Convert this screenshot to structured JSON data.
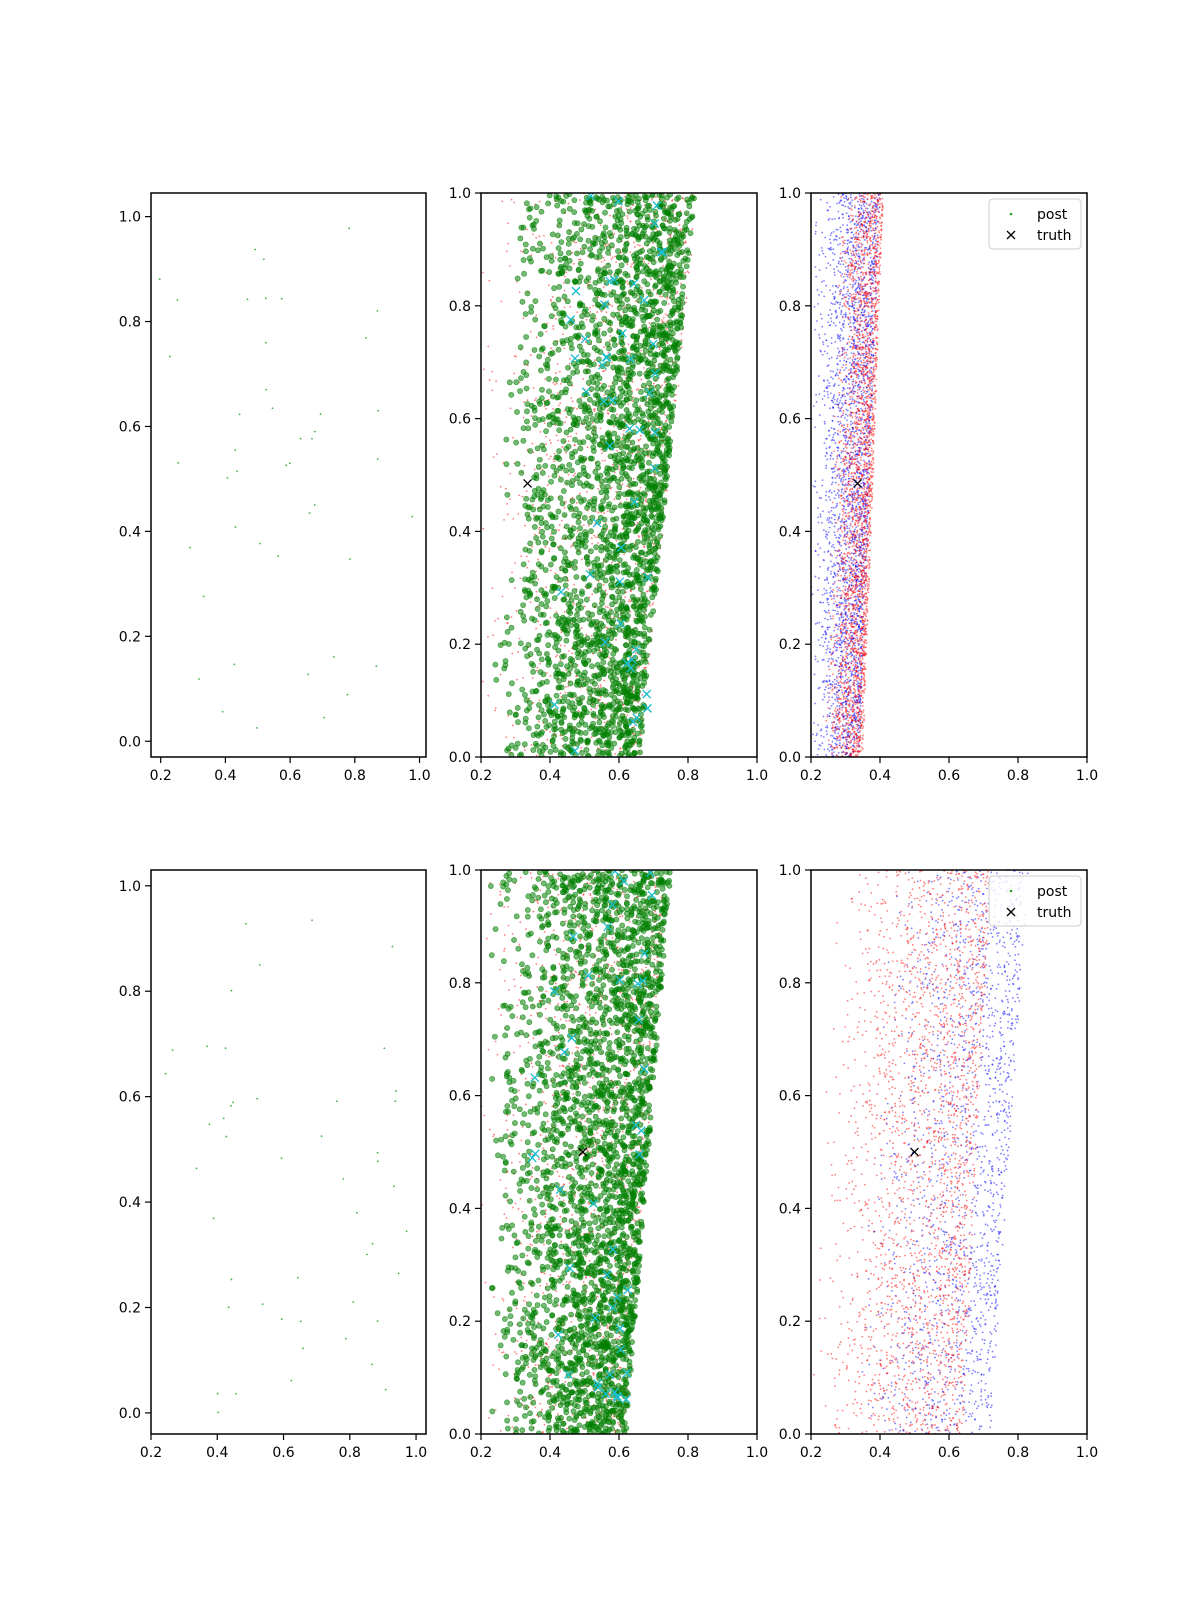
{
  "chart_data": [
    {
      "type": "scatter",
      "panel": "top-left",
      "xlim": [
        0.17,
        1.02
      ],
      "ylim": [
        -0.03,
        1.045
      ],
      "xticks": [
        "0.2",
        "0.4",
        "0.6",
        "0.8",
        "1.0"
      ],
      "yticks": [
        "0.0",
        "0.2",
        "0.4",
        "0.6",
        "0.8",
        "1.0"
      ],
      "series": [
        {
          "kind": "points",
          "color": "#2ca02c",
          "marker": "dot",
          "count": 45,
          "seed": 11,
          "x_range": [
            0.19,
            0.99
          ],
          "y_range": [
            0.0,
            1.0
          ]
        }
      ]
    },
    {
      "type": "scatter",
      "panel": "top-middle",
      "xlim": [
        0.2,
        1.0
      ],
      "ylim": [
        0.0,
        1.0
      ],
      "xticks": [
        "0.2",
        "0.4",
        "0.6",
        "0.8",
        "1.0"
      ],
      "yticks": [
        "0.0",
        "0.2",
        "0.4",
        "0.6",
        "0.8",
        "1.0"
      ],
      "series": [
        {
          "kind": "band",
          "color": "#ff0000",
          "marker": "small-dot",
          "count": 1500,
          "seed": 21,
          "left_at_y0": 0.2,
          "left_at_y1": 0.2,
          "right_at_y0": 0.66,
          "right_at_y1": 0.83
        },
        {
          "kind": "band",
          "color": "#008000",
          "marker": "circle",
          "count": 2600,
          "seed": 22,
          "left_at_y0": 0.22,
          "left_at_y1": 0.28,
          "right_at_y0": 0.66,
          "right_at_y1": 0.82
        },
        {
          "kind": "band",
          "color": "#17becf",
          "marker": "x",
          "count": 50,
          "seed": 23,
          "left_at_y0": 0.3,
          "left_at_y1": 0.48,
          "right_at_y0": 0.68,
          "right_at_y1": 0.74
        }
      ],
      "truth": {
        "x": 0.335,
        "y": 0.485
      }
    },
    {
      "type": "scatter",
      "panel": "top-right",
      "xlim": [
        0.2,
        1.0
      ],
      "ylim": [
        0.0,
        1.0
      ],
      "xticks": [
        "0.2",
        "0.4",
        "0.6",
        "0.8",
        "1.0"
      ],
      "yticks": [
        "0.0",
        "0.2",
        "0.4",
        "0.6",
        "0.8",
        "1.0"
      ],
      "series": [
        {
          "kind": "band",
          "color": "#0000ff",
          "marker": "small-dot",
          "count": 2600,
          "seed": 31,
          "left_at_y0": 0.2,
          "left_at_y1": 0.2,
          "right_at_y0": 0.34,
          "right_at_y1": 0.4
        },
        {
          "kind": "band",
          "color": "#ff0000",
          "marker": "small-dot",
          "count": 2600,
          "seed": 32,
          "left_at_y0": 0.24,
          "left_at_y1": 0.28,
          "right_at_y0": 0.35,
          "right_at_y1": 0.41
        }
      ],
      "truth": {
        "x": 0.335,
        "y": 0.485
      },
      "legend": {
        "placement": "top-right",
        "entries": [
          {
            "label": "post",
            "marker": "dot"
          },
          {
            "label": "truth",
            "marker": "x"
          }
        ]
      }
    },
    {
      "type": "scatter",
      "panel": "bottom-left",
      "xlim": [
        0.2,
        1.03
      ],
      "ylim": [
        -0.04,
        1.03
      ],
      "xticks": [
        "0.2",
        "0.4",
        "0.6",
        "0.8",
        "1.0"
      ],
      "yticks": [
        "0.0",
        "0.2",
        "0.4",
        "0.6",
        "0.8",
        "1.0"
      ],
      "series": [
        {
          "kind": "points",
          "color": "#2ca02c",
          "marker": "dot",
          "count": 48,
          "seed": 41,
          "x_range": [
            0.22,
            1.0
          ],
          "y_range": [
            0.0,
            0.97
          ]
        }
      ]
    },
    {
      "type": "scatter",
      "panel": "bottom-middle",
      "xlim": [
        0.2,
        1.0
      ],
      "ylim": [
        0.0,
        1.0
      ],
      "xticks": [
        "0.2",
        "0.4",
        "0.6",
        "0.8",
        "1.0"
      ],
      "yticks": [
        "0.0",
        "0.2",
        "0.4",
        "0.6",
        "0.8",
        "1.0"
      ],
      "series": [
        {
          "kind": "band",
          "color": "#ff0000",
          "marker": "small-dot",
          "count": 1500,
          "seed": 51,
          "left_at_y0": 0.2,
          "left_at_y1": 0.2,
          "right_at_y0": 0.62,
          "right_at_y1": 0.74
        },
        {
          "kind": "band",
          "color": "#008000",
          "marker": "circle",
          "count": 2700,
          "seed": 52,
          "left_at_y0": 0.22,
          "left_at_y1": 0.22,
          "right_at_y0": 0.62,
          "right_at_y1": 0.75
        },
        {
          "kind": "band",
          "color": "#17becf",
          "marker": "x",
          "count": 45,
          "seed": 53,
          "left_at_y0": 0.3,
          "left_at_y1": 0.28,
          "right_at_y0": 0.62,
          "right_at_y1": 0.72
        }
      ],
      "truth": {
        "x": 0.495,
        "y": 0.5
      }
    },
    {
      "type": "scatter",
      "panel": "bottom-right",
      "xlim": [
        0.2,
        1.0
      ],
      "ylim": [
        0.0,
        1.0
      ],
      "xticks": [
        "0.2",
        "0.4",
        "0.6",
        "0.8",
        "1.0"
      ],
      "yticks": [
        "0.0",
        "0.2",
        "0.4",
        "0.6",
        "0.8",
        "1.0"
      ],
      "series": [
        {
          "kind": "band",
          "color": "#0000ff",
          "marker": "small-dot",
          "count": 1700,
          "seed": 61,
          "left_at_y0": 0.3,
          "left_at_y1": 0.42,
          "right_at_y0": 0.72,
          "right_at_y1": 0.83
        },
        {
          "kind": "band",
          "color": "#ff0000",
          "marker": "small-dot",
          "count": 2300,
          "seed": 62,
          "left_at_y0": 0.2,
          "left_at_y1": 0.26,
          "right_at_y0": 0.64,
          "right_at_y1": 0.72
        }
      ],
      "truth": {
        "x": 0.5,
        "y": 0.5
      },
      "legend": {
        "placement": "top-right",
        "entries": [
          {
            "label": "post",
            "marker": "dot"
          },
          {
            "label": "truth",
            "marker": "x"
          }
        ]
      }
    }
  ]
}
